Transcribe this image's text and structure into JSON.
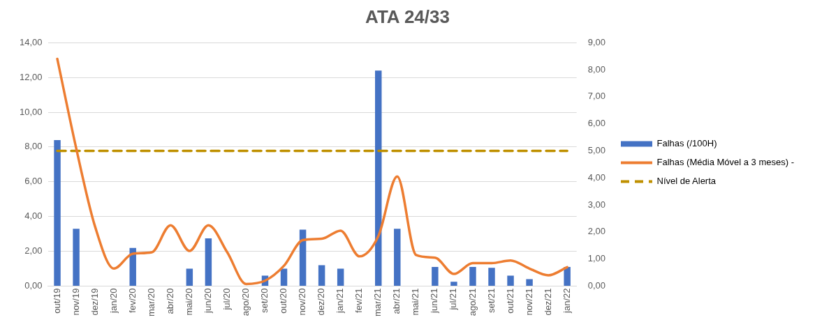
{
  "chart_data": {
    "type": "bar",
    "title": "ATA 24/33",
    "categories": [
      "out/19",
      "nov/19",
      "dez/19",
      "jan/20",
      "fev/20",
      "mar/20",
      "abr/20",
      "mai/20",
      "jun/20",
      "jul/20",
      "ago/20",
      "set/20",
      "out/20",
      "nov/20",
      "dez/20",
      "jan/21",
      "fev/21",
      "mar/21",
      "abr/21",
      "mai/21",
      "jun/21",
      "jul/21",
      "ago/21",
      "set/21",
      "out/21",
      "nov/21",
      "dez/21",
      "jan/22"
    ],
    "series": [
      {
        "name": "Falhas (/100H)",
        "color": "#4472c4",
        "values": [
          8.4,
          3.3,
          0,
          0,
          2.2,
          0,
          0,
          1.0,
          2.75,
          0,
          0,
          0.6,
          1.0,
          3.25,
          1.2,
          1.0,
          0,
          12.4,
          3.3,
          0,
          1.1,
          0.25,
          1.1,
          1.05,
          0.6,
          0.4,
          0,
          1.1
        ]
      },
      {
        "name": "Falhas (Média Móvel a 3 meses) -",
        "type": "line",
        "axis": "y2",
        "color": "#ed7d31",
        "line_style": "solid",
        "values": [
          8.4,
          5.1,
          2.2,
          0.65,
          1.2,
          1.25,
          2.25,
          1.3,
          2.25,
          1.25,
          0.08,
          0.2,
          0.75,
          1.7,
          1.75,
          2.05,
          1.1,
          1.85,
          4.05,
          1.15,
          1.05,
          0.45,
          0.85,
          0.85,
          0.95,
          0.65,
          0.4,
          0.7
        ]
      },
      {
        "name": "Nível de Alerta",
        "type": "line",
        "axis": "y2",
        "color": "#bf9000",
        "line_style": "dashed",
        "values": [
          5,
          5,
          5,
          5,
          5,
          5,
          5,
          5,
          5,
          5,
          5,
          5,
          5,
          5,
          5,
          5,
          5,
          5,
          5,
          5,
          5,
          5,
          5,
          5,
          5,
          5,
          5,
          5
        ]
      }
    ],
    "ylim": [
      0,
      14
    ],
    "yticks": [
      {
        "value": 0,
        "label": "0,00"
      },
      {
        "value": 2,
        "label": "2,00"
      },
      {
        "value": 4,
        "label": "4,00"
      },
      {
        "value": 6,
        "label": "6,00"
      },
      {
        "value": 8,
        "label": "8,00"
      },
      {
        "value": 10,
        "label": "10,00"
      },
      {
        "value": 12,
        "label": "12,00"
      },
      {
        "value": 14,
        "label": "14,00"
      }
    ],
    "y2lim": [
      0,
      9
    ],
    "y2ticks": [
      {
        "value": 0,
        "label": "0,00"
      },
      {
        "value": 1,
        "label": "1,00"
      },
      {
        "value": 2,
        "label": "2,00"
      },
      {
        "value": 3,
        "label": "3,00"
      },
      {
        "value": 4,
        "label": "4,00"
      },
      {
        "value": 5,
        "label": "5,00"
      },
      {
        "value": 6,
        "label": "6,00"
      },
      {
        "value": 7,
        "label": "7,00"
      },
      {
        "value": 8,
        "label": "8,00"
      },
      {
        "value": 9,
        "label": "9,00"
      }
    ],
    "grid": "y",
    "legend": "right",
    "marker": "none"
  }
}
